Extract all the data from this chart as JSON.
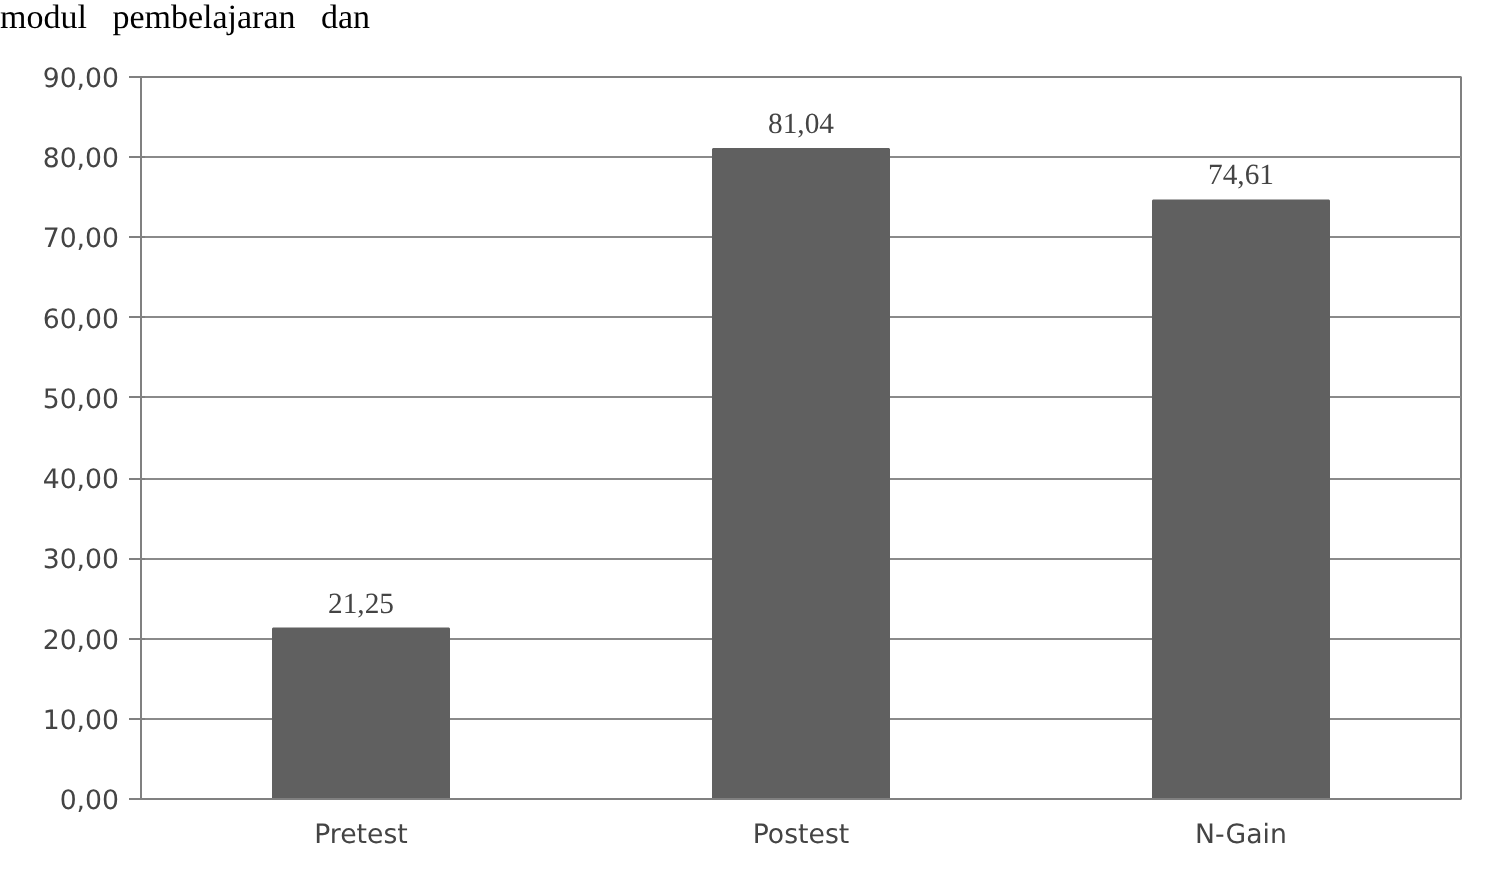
{
  "chart_data": {
    "type": "bar",
    "categories": [
      "Pretest",
      "Postest",
      "N-Gain"
    ],
    "values": [
      21.25,
      81.04,
      74.61
    ],
    "color": "#606060",
    "value_labels": [
      "21,25",
      "81,04",
      "74,61"
    ],
    "ylim": [
      0,
      90
    ],
    "yticks": [
      {
        "value": 0,
        "label": "0,00"
      },
      {
        "value": 10,
        "label": "10,00"
      },
      {
        "value": 20,
        "label": "20,00"
      },
      {
        "value": 30,
        "label": "30,00"
      },
      {
        "value": 40,
        "label": "40,00"
      },
      {
        "value": 50,
        "label": "50,00"
      },
      {
        "value": 60,
        "label": "60,00"
      },
      {
        "value": 70,
        "label": "70,00"
      },
      {
        "value": 80,
        "label": "80,00"
      },
      {
        "value": 90,
        "label": "90,00"
      }
    ],
    "grid": "y",
    "annotations": [
      "modul   pembelajaran   dan"
    ]
  }
}
